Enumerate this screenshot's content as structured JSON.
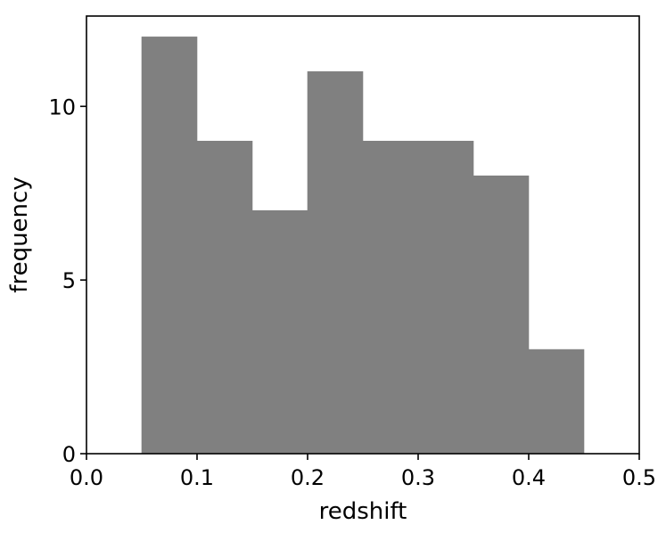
{
  "chart_data": {
    "type": "bar",
    "subtype": "histogram",
    "bin_edges": [
      0.05,
      0.1,
      0.15,
      0.2,
      0.25,
      0.3,
      0.35,
      0.4,
      0.45
    ],
    "values": [
      12,
      9,
      7,
      11,
      9,
      9,
      8,
      3
    ],
    "xlabel": "redshift",
    "ylabel": "frequency",
    "xlim": [
      0.0,
      0.5
    ],
    "ylim": [
      0,
      12.6
    ],
    "xticks": [
      0.0,
      0.1,
      0.2,
      0.3,
      0.4,
      0.5
    ],
    "xtick_labels": [
      "0.0",
      "0.1",
      "0.2",
      "0.3",
      "0.4",
      "0.5"
    ],
    "yticks": [
      0,
      5,
      10
    ],
    "ytick_labels": [
      "0",
      "5",
      "10"
    ],
    "grid": false,
    "bar_color": "#808080",
    "axis_color": "#000000"
  }
}
